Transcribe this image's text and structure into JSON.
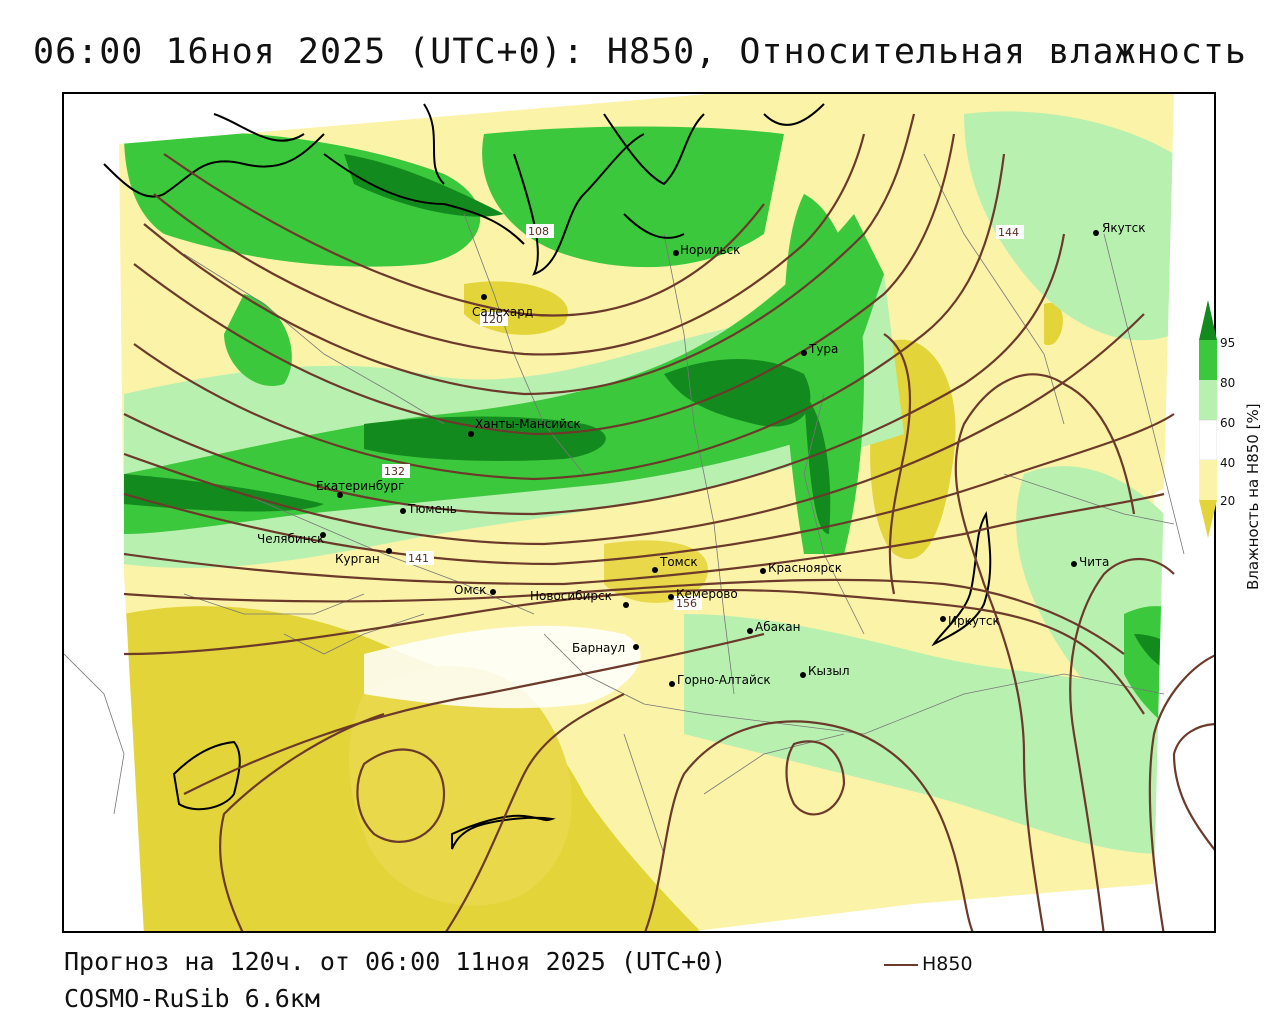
{
  "title": "06:00 16ноя 2025 (UTC+0): H850, Относительная влажность",
  "footer": {
    "forecast": "Прогноз на 120ч. от 06:00 11ноя 2025 (UTC+0)",
    "model": "COSMO-RuSib 6.6км",
    "legend_contour": "H850"
  },
  "colorbar": {
    "title": "Влажность на H850 [%]",
    "ticks": [
      "95",
      "80",
      "60",
      "40",
      "20"
    ],
    "colors": {
      "dark_green": "#138a1e",
      "green": "#3cc83c",
      "light_green": "#b8f0b0",
      "white": "#ffffff",
      "light_yellow": "#fbf3a8",
      "yellow": "#e3d43a"
    }
  },
  "contour_labels": [
    "108",
    "120",
    "132",
    "141",
    "144",
    "156"
  ],
  "cities": [
    {
      "name": "Норильск"
    },
    {
      "name": "Салехард"
    },
    {
      "name": "Тура"
    },
    {
      "name": "Якутск"
    },
    {
      "name": "Ханты-Мансийск"
    },
    {
      "name": "Екатеринбург"
    },
    {
      "name": "Тюмень"
    },
    {
      "name": "Челябинск"
    },
    {
      "name": "Курган"
    },
    {
      "name": "Омск"
    },
    {
      "name": "Томск"
    },
    {
      "name": "Новосибирск"
    },
    {
      "name": "Кемерово"
    },
    {
      "name": "Красноярск"
    },
    {
      "name": "Абакан"
    },
    {
      "name": "Барнаул"
    },
    {
      "name": "Горно-Алтайск"
    },
    {
      "name": "Кызыл"
    },
    {
      "name": "Иркутск"
    },
    {
      "name": "Чита"
    }
  ]
}
